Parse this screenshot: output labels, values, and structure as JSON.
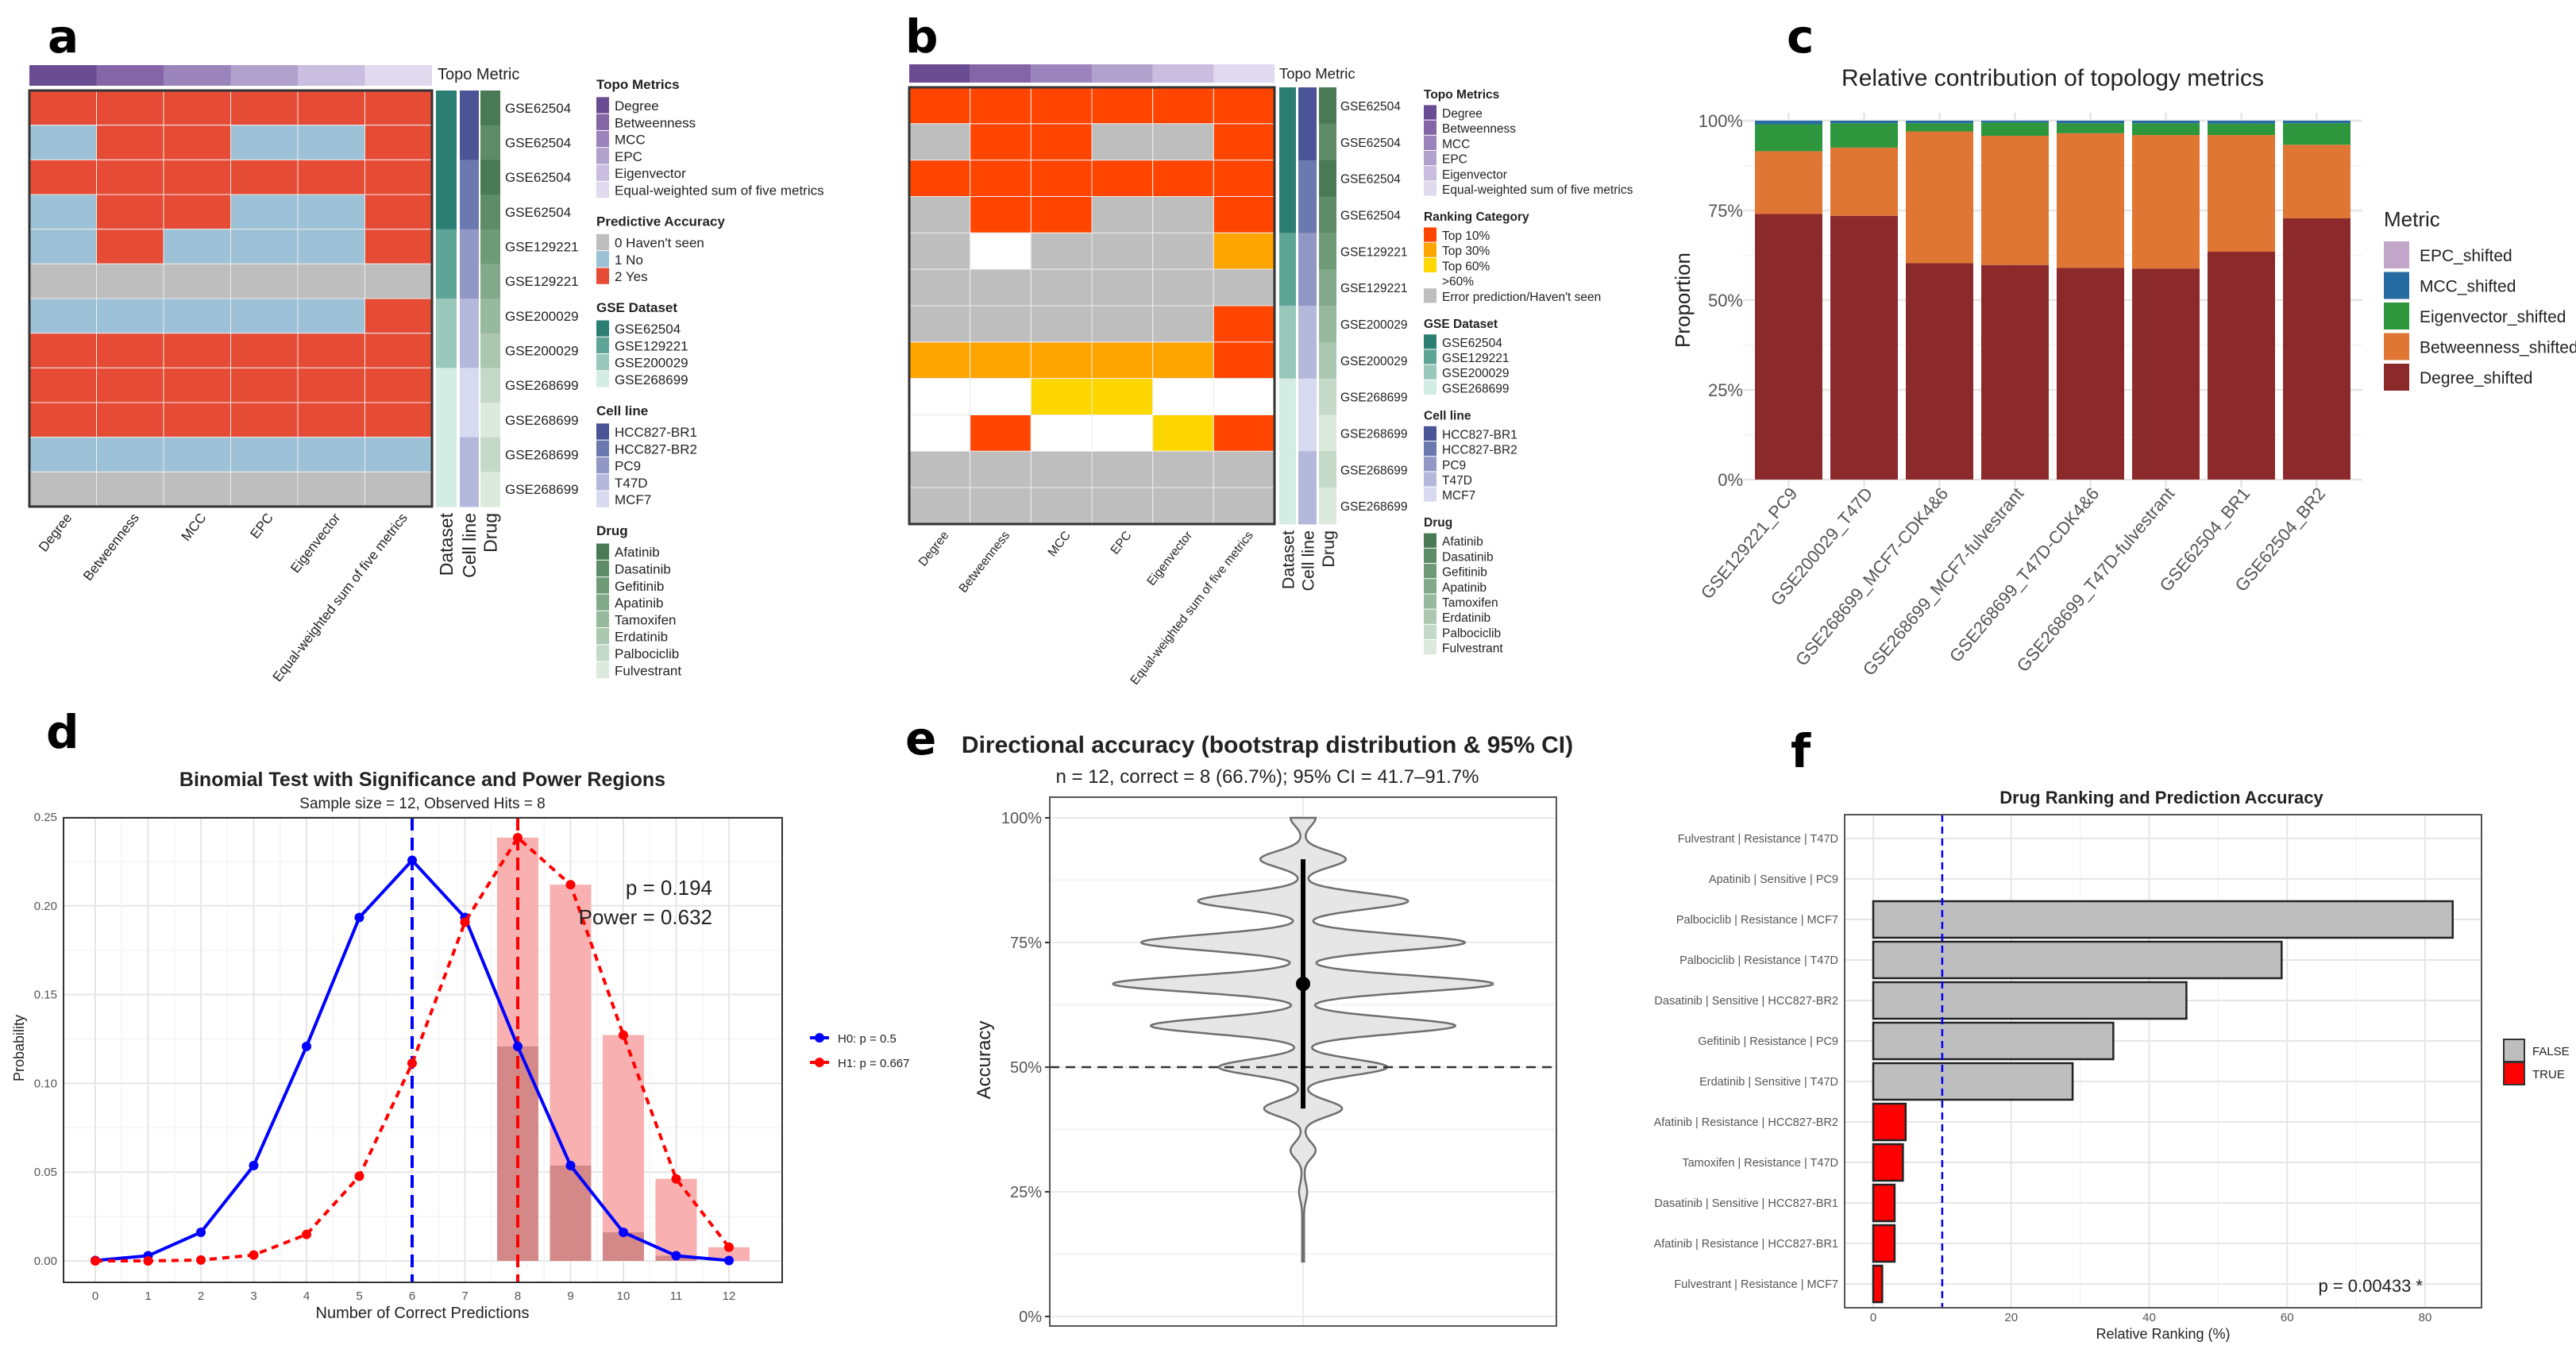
{
  "panel_labels": [
    "a",
    "b",
    "c",
    "d",
    "e",
    "f"
  ],
  "chart_data": [
    {
      "type": "heatmap",
      "top_annotation_label": "Topo Metric",
      "columns": [
        "Degree",
        "Betweenness",
        "MCC",
        "EPC",
        "Eigenvector",
        "Equal-weighted sum of five metrics"
      ],
      "annotation_columns": [
        "Dataset",
        "Cell line",
        "Drug"
      ],
      "row_labels": [
        "GSE62504",
        "GSE62504",
        "GSE62504",
        "GSE62504",
        "GSE129221",
        "GSE129221",
        "GSE200029",
        "GSE200029",
        "GSE268699",
        "GSE268699",
        "GSE268699",
        "GSE268699"
      ],
      "values": [
        [
          2,
          2,
          2,
          2,
          2,
          2
        ],
        [
          1,
          2,
          2,
          1,
          1,
          2
        ],
        [
          2,
          2,
          2,
          2,
          2,
          2
        ],
        [
          1,
          2,
          2,
          1,
          1,
          2
        ],
        [
          1,
          2,
          1,
          1,
          1,
          2
        ],
        [
          0,
          0,
          0,
          0,
          0,
          0
        ],
        [
          1,
          1,
          1,
          1,
          1,
          2
        ],
        [
          2,
          2,
          2,
          2,
          2,
          2
        ],
        [
          2,
          2,
          2,
          2,
          2,
          2
        ],
        [
          2,
          2,
          2,
          2,
          2,
          2
        ],
        [
          1,
          1,
          1,
          1,
          1,
          1
        ],
        [
          0,
          0,
          0,
          0,
          0,
          0
        ]
      ],
      "row_annotations": {
        "Dataset": [
          "GSE62504",
          "GSE62504",
          "GSE62504",
          "GSE62504",
          "GSE129221",
          "GSE129221",
          "GSE200029",
          "GSE200029",
          "GSE268699",
          "GSE268699",
          "GSE268699",
          "GSE268699"
        ],
        "Cell line": [
          "HCC827-BR1",
          "HCC827-BR1",
          "HCC827-BR2",
          "HCC827-BR2",
          "PC9",
          "PC9",
          "T47D",
          "T47D",
          "MCF7",
          "MCF7",
          "T47D",
          "T47D"
        ],
        "Drug": [
          "Afatinib",
          "Dasatinib",
          "Afatinib",
          "Dasatinib",
          "Gefitinib",
          "Apatinib",
          "Tamoxifen",
          "Erdatinib",
          "Palbociclib",
          "Fulvestrant",
          "Palbociclib",
          "Fulvestrant"
        ]
      },
      "legends": [
        {
          "title": "Topo Metrics",
          "items": [
            {
              "label": "Degree",
              "color": "#6a4c93"
            },
            {
              "label": "Betweenness",
              "color": "#8466a6"
            },
            {
              "label": "MCC",
              "color": "#9b84bb"
            },
            {
              "label": "EPC",
              "color": "#b1a1cd"
            },
            {
              "label": "Eigenvector",
              "color": "#c9bde0"
            },
            {
              "label": "Equal-weighted sum of five metrics",
              "color": "#e1d9ee"
            }
          ]
        },
        {
          "title": "Predictive Accuracy",
          "items": [
            {
              "label": "0 Haven't seen",
              "color": "#bebebe"
            },
            {
              "label": "1 No",
              "color": "#9dc1d6"
            },
            {
              "label": "2 Yes",
              "color": "#e64b35"
            }
          ]
        },
        {
          "title": "GSE Dataset",
          "items": [
            {
              "label": "GSE62504",
              "color": "#2b7f72"
            },
            {
              "label": "GSE129221",
              "color": "#5fa597"
            },
            {
              "label": "GSE200029",
              "color": "#99c7ba"
            },
            {
              "label": "GSE268699",
              "color": "#d3ece4"
            }
          ]
        },
        {
          "title": "Cell line",
          "items": [
            {
              "label": "HCC827-BR1",
              "color": "#4a5496"
            },
            {
              "label": "HCC827-BR2",
              "color": "#6c78b0"
            },
            {
              "label": "PC9",
              "color": "#9198c6"
            },
            {
              "label": "T47D",
              "color": "#b4b9dc"
            },
            {
              "label": "MCF7",
              "color": "#d8daf0"
            }
          ]
        },
        {
          "title": "Drug",
          "items": [
            {
              "label": "Afatinib",
              "color": "#4a7a55"
            },
            {
              "label": "Dasatinib",
              "color": "#5e8c68"
            },
            {
              "label": "Gefitinib",
              "color": "#6f9a78"
            },
            {
              "label": "Apatinib",
              "color": "#82a98a"
            },
            {
              "label": "Tamoxifen",
              "color": "#97b99d"
            },
            {
              "label": "Erdatinib",
              "color": "#abc7b0"
            },
            {
              "label": "Palbociclib",
              "color": "#c5d9c8"
            },
            {
              "label": "Fulvestrant",
              "color": "#dce9dd"
            }
          ]
        }
      ]
    },
    {
      "type": "heatmap",
      "top_annotation_label": "Topo Metric",
      "columns": [
        "Degree",
        "Betweenness",
        "MCC",
        "EPC",
        "Eigenvector",
        "Equal-weighted sum of five metrics"
      ],
      "annotation_columns": [
        "Dataset",
        "Cell line",
        "Drug"
      ],
      "row_labels": [
        "GSE62504",
        "GSE62504",
        "GSE62504",
        "GSE62504",
        "GSE129221",
        "GSE129221",
        "GSE200029",
        "GSE200029",
        "GSE268699",
        "GSE268699",
        "GSE268699",
        "GSE268699"
      ],
      "values": [
        [
          0,
          0,
          0,
          0,
          0,
          0
        ],
        [
          4,
          0,
          0,
          4,
          4,
          0
        ],
        [
          0,
          0,
          0,
          0,
          0,
          0
        ],
        [
          4,
          0,
          0,
          4,
          4,
          0
        ],
        [
          4,
          3,
          4,
          4,
          4,
          1
        ],
        [
          4,
          4,
          4,
          4,
          4,
          4
        ],
        [
          4,
          4,
          4,
          4,
          4,
          0
        ],
        [
          1,
          1,
          1,
          1,
          1,
          0
        ],
        [
          3,
          3,
          2,
          2,
          3,
          3
        ],
        [
          3,
          0,
          3,
          3,
          2,
          0
        ],
        [
          4,
          4,
          4,
          4,
          4,
          4
        ],
        [
          4,
          4,
          4,
          4,
          4,
          4
        ]
      ],
      "row_annotations": {
        "Dataset": [
          "GSE62504",
          "GSE62504",
          "GSE62504",
          "GSE62504",
          "GSE129221",
          "GSE129221",
          "GSE200029",
          "GSE200029",
          "GSE268699",
          "GSE268699",
          "GSE268699",
          "GSE268699"
        ],
        "Cell line": [
          "HCC827-BR1",
          "HCC827-BR1",
          "HCC827-BR2",
          "HCC827-BR2",
          "PC9",
          "PC9",
          "T47D",
          "T47D",
          "MCF7",
          "MCF7",
          "T47D",
          "T47D"
        ],
        "Drug": [
          "Afatinib",
          "Dasatinib",
          "Afatinib",
          "Dasatinib",
          "Gefitinib",
          "Apatinib",
          "Tamoxifen",
          "Erdatinib",
          "Palbociclib",
          "Fulvestrant",
          "Palbociclib",
          "Fulvestrant"
        ]
      },
      "legends": [
        {
          "title": "Topo Metrics",
          "items": [
            {
              "label": "Degree",
              "color": "#6a4c93"
            },
            {
              "label": "Betweenness",
              "color": "#8466a6"
            },
            {
              "label": "MCC",
              "color": "#9b84bb"
            },
            {
              "label": "EPC",
              "color": "#b1a1cd"
            },
            {
              "label": "Eigenvector",
              "color": "#c9bde0"
            },
            {
              "label": "Equal-weighted sum of five metrics",
              "color": "#e1d9ee"
            }
          ]
        },
        {
          "title": "Ranking Category",
          "items": [
            {
              "label": "Top 10%",
              "color": "#ff4500"
            },
            {
              "label": "Top 30%",
              "color": "#ffa500"
            },
            {
              "label": "Top 60%",
              "color": "#ffd700"
            },
            {
              "label": ">60%",
              "color": "#ffffff"
            },
            {
              "label": "Error prediction/Haven't seen",
              "color": "#bebebe"
            }
          ]
        },
        {
          "title": "GSE Dataset",
          "items": [
            {
              "label": "GSE62504",
              "color": "#2b7f72"
            },
            {
              "label": "GSE129221",
              "color": "#5fa597"
            },
            {
              "label": "GSE200029",
              "color": "#99c7ba"
            },
            {
              "label": "GSE268699",
              "color": "#d3ece4"
            }
          ]
        },
        {
          "title": "Cell line",
          "items": [
            {
              "label": "HCC827-BR1",
              "color": "#4a5496"
            },
            {
              "label": "HCC827-BR2",
              "color": "#6c78b0"
            },
            {
              "label": "PC9",
              "color": "#9198c6"
            },
            {
              "label": "T47D",
              "color": "#b4b9dc"
            },
            {
              "label": "MCF7",
              "color": "#d8daf0"
            }
          ]
        },
        {
          "title": "Drug",
          "items": [
            {
              "label": "Afatinib",
              "color": "#4a7a55"
            },
            {
              "label": "Dasatinib",
              "color": "#5e8c68"
            },
            {
              "label": "Gefitinib",
              "color": "#6f9a78"
            },
            {
              "label": "Apatinib",
              "color": "#82a98a"
            },
            {
              "label": "Tamoxifen",
              "color": "#97b99d"
            },
            {
              "label": "Erdatinib",
              "color": "#abc7b0"
            },
            {
              "label": "Palbociclib",
              "color": "#c5d9c8"
            },
            {
              "label": "Fulvestrant",
              "color": "#dce9dd"
            }
          ]
        }
      ]
    },
    {
      "type": "bar",
      "stacked": true,
      "title": "Relative contribution of topology metrics",
      "xlabel": "",
      "ylabel": "Proportion",
      "ylim": [
        0,
        1
      ],
      "yticks": [
        0,
        0.25,
        0.5,
        0.75,
        1
      ],
      "ytick_labels": [
        "0%",
        "25%",
        "50%",
        "75%",
        "100%"
      ],
      "grid": true,
      "categories": [
        "GSE129221_PC9",
        "GSE200029_T47D",
        "GSE268699_MCF7-CDK4&6",
        "GSE268699_MCF7-fulvestrant",
        "GSE268699_T47D-CDK4&6",
        "GSE268699_T47D-fulvestrant",
        "GSE62504_BR1",
        "GSE62504_BR2"
      ],
      "legend_title": "Metric",
      "legend_position": "right",
      "series": [
        {
          "name": "Degree_shifted",
          "color": "#8c2a2b",
          "values": [
            0.74,
            0.735,
            0.603,
            0.598,
            0.59,
            0.588,
            0.635,
            0.728
          ]
        },
        {
          "name": "Betweenness_shifted",
          "color": "#df7633",
          "values": [
            0.175,
            0.19,
            0.367,
            0.36,
            0.375,
            0.372,
            0.325,
            0.205
          ]
        },
        {
          "name": "Eigenvector_shifted",
          "color": "#2e973e",
          "values": [
            0.075,
            0.068,
            0.023,
            0.037,
            0.028,
            0.033,
            0.032,
            0.06
          ]
        },
        {
          "name": "MCC_shifted",
          "color": "#256ca3",
          "values": [
            0.01,
            0.007,
            0.007,
            0.005,
            0.007,
            0.007,
            0.008,
            0.007
          ]
        },
        {
          "name": "EPC_shifted",
          "color": "#c2a6c9",
          "values": [
            0,
            0,
            0,
            0,
            0,
            0,
            0,
            0
          ]
        }
      ]
    },
    {
      "type": "line",
      "title": "Binomial Test with Significance and Power Regions",
      "subtitle": "Sample size = 12, Observed Hits = 8",
      "xlabel": "Number of Correct Predictions",
      "ylabel": "Probability",
      "x": [
        0,
        1,
        2,
        3,
        4,
        5,
        6,
        7,
        8,
        9,
        10,
        11,
        12
      ],
      "xticks": [
        "0",
        "1",
        "2",
        "3",
        "4",
        "5",
        "6",
        "7",
        "8",
        "9",
        "10",
        "11",
        "12"
      ],
      "ylim": [
        0,
        0.25
      ],
      "yticks": [
        "0.00",
        "0.05",
        "0.10",
        "0.15",
        "0.20",
        "0.25"
      ],
      "legend_position": "right",
      "series": [
        {
          "name": "H0: p = 0.5",
          "color": "#0000ff",
          "style": "solid",
          "values": [
            0.0002,
            0.0029,
            0.0161,
            0.0537,
            0.1208,
            0.1934,
            0.2256,
            0.1934,
            0.1208,
            0.0537,
            0.0161,
            0.0029,
            0.0002
          ]
        },
        {
          "name": "H1: p = 0.667",
          "color": "#ff0000",
          "style": "dashed",
          "values": [
            0.0,
            0.0,
            0.0005,
            0.0033,
            0.0149,
            0.0477,
            0.1113,
            0.1908,
            0.2384,
            0.2119,
            0.1272,
            0.0462,
            0.0077
          ]
        }
      ],
      "power_region": {
        "x": [
          8,
          9,
          10,
          11,
          12
        ],
        "h1_values": [
          0.2384,
          0.2119,
          0.1272,
          0.0462,
          0.0077
        ],
        "color": "#f9b0b0"
      },
      "significance_region": {
        "x": [
          8,
          9,
          10,
          11
        ],
        "h0_values": [
          0.1208,
          0.0537,
          0.0161,
          0.0029
        ],
        "color": "#d48888"
      },
      "vlines": [
        {
          "x": 6,
          "color": "#0000ff"
        },
        {
          "x": 8,
          "color": "#ff0000"
        }
      ],
      "annotations": [
        "p = 0.194",
        "Power = 0.632"
      ]
    },
    {
      "type": "violin",
      "title": "Directional accuracy (bootstrap distribution & 95% CI)",
      "subtitle": "n = 12, correct = 8 (66.7%); 95% CI = 41.7–91.7%",
      "ylabel": "Accuracy",
      "ylim": [
        0,
        1
      ],
      "yticks": [
        0,
        0.25,
        0.5,
        0.75,
        1
      ],
      "ytick_labels": [
        "0%",
        "25%",
        "50%",
        "75%",
        "100%"
      ],
      "point": 0.667,
      "ci": [
        0.417,
        0.917
      ],
      "reference_line": 0.5,
      "range": [
        0.11,
        1.0
      ],
      "density": {
        "support": [
          1.0,
          0.917,
          0.833,
          0.75,
          0.667,
          0.583,
          0.5,
          0.417,
          0.333,
          0.25
        ],
        "relative": [
          0.06,
          0.22,
          0.55,
          0.85,
          1.0,
          0.8,
          0.44,
          0.2,
          0.06,
          0.015
        ]
      }
    },
    {
      "type": "bar",
      "orientation": "horizontal",
      "title": "Drug Ranking and Prediction Accuracy",
      "xlabel": "Relative Ranking (%)",
      "xlim": [
        -4,
        88
      ],
      "xticks": [
        0,
        20,
        40,
        60,
        80
      ],
      "xtick_labels": [
        "0",
        "20",
        "40",
        "60",
        "80"
      ],
      "categories": [
        "Fulvestrant | Resistance | T47D",
        "Apatinib | Sensitive | PC9",
        "Palbociclib | Resistance | MCF7",
        "Palbociclib | Resistance | T47D",
        "Dasatinib | Sensitive | HCC827-BR2",
        "Gefitinib | Resistance | PC9",
        "Erdatinib | Sensitive | T47D",
        "Afatinib | Resistance | HCC827-BR2",
        "Tamoxifen | Resistance | T47D",
        "Dasatinib | Sensitive | HCC827-BR1",
        "Afatinib | Resistance | HCC827-BR1",
        "Fulvestrant | Resistance | MCF7"
      ],
      "values": [
        null,
        null,
        84.0,
        59.2,
        45.4,
        34.8,
        28.9,
        4.7,
        4.3,
        3.1,
        3.1,
        1.3
      ],
      "correct": [
        "",
        "",
        "FALSE",
        "FALSE",
        "FALSE",
        "FALSE",
        "FALSE",
        "TRUE",
        "TRUE",
        "TRUE",
        "TRUE",
        "TRUE"
      ],
      "legend": [
        {
          "label": "FALSE",
          "color": "#bebebe"
        },
        {
          "label": "TRUE",
          "color": "#ff0000"
        }
      ],
      "legend_position": "right",
      "vline": {
        "x": 10,
        "color": "#0000ff"
      },
      "annotation": "p = 0.00433 *"
    }
  ]
}
